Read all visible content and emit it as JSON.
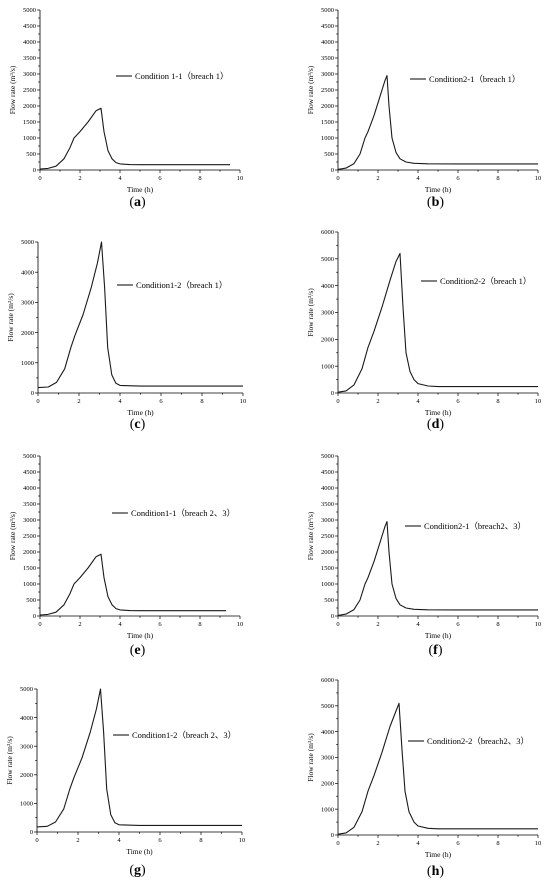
{
  "chart_data": [
    {
      "panel": "a",
      "caption_letter": "a",
      "type": "line",
      "xlabel": "Time (h)",
      "ylabel": "Flow rate (m³/s)",
      "xlim": [
        0,
        10
      ],
      "ylim": [
        0,
        5000
      ],
      "xticks": [
        0,
        2,
        4,
        6,
        8,
        10
      ],
      "yticks": [
        0,
        500,
        1000,
        1500,
        2000,
        2500,
        3000,
        3500,
        4000,
        4500,
        5000
      ],
      "series": [
        {
          "name": "Condition 1-1（breach 1）",
          "x": [
            0,
            0.4,
            0.8,
            1.2,
            1.5,
            1.7,
            2.0,
            2.4,
            2.8,
            3.05,
            3.2,
            3.4,
            3.6,
            3.8,
            4.0,
            4.5,
            5.0,
            6.0,
            7.0,
            8.0,
            9.0,
            9.5
          ],
          "y": [
            30,
            50,
            120,
            350,
            700,
            1000,
            1200,
            1500,
            1850,
            1930,
            1200,
            600,
            350,
            230,
            190,
            170,
            165,
            165,
            165,
            165,
            165,
            165
          ]
        }
      ]
    },
    {
      "panel": "b",
      "caption_letter": "b",
      "type": "line",
      "xlabel": "Time (h)",
      "ylabel": "Flow rate (m³/s)",
      "xlim": [
        0,
        10
      ],
      "ylim": [
        0,
        5000
      ],
      "xticks": [
        0,
        2,
        4,
        6,
        8,
        10
      ],
      "yticks": [
        0,
        500,
        1000,
        1500,
        2000,
        2500,
        3000,
        3500,
        4000,
        4500,
        5000
      ],
      "series": [
        {
          "name": "Condition2-1（breach 1）",
          "x": [
            0,
            0.4,
            0.8,
            1.1,
            1.35,
            1.5,
            1.8,
            2.1,
            2.35,
            2.45,
            2.55,
            2.7,
            2.9,
            3.1,
            3.4,
            3.8,
            4.5,
            6.0,
            8.0,
            10.0
          ],
          "y": [
            20,
            60,
            200,
            500,
            1000,
            1200,
            1700,
            2300,
            2800,
            2950,
            2000,
            1000,
            550,
            350,
            250,
            210,
            195,
            190,
            190,
            190
          ]
        }
      ]
    },
    {
      "panel": "c",
      "caption_letter": "c",
      "type": "line",
      "xlabel": "Time (h)",
      "ylabel": "Flow rate (m³/s)",
      "xlim": [
        0,
        10
      ],
      "ylim": [
        0,
        5000
      ],
      "xticks": [
        0,
        2,
        4,
        6,
        8,
        10
      ],
      "yticks": [
        0,
        1000,
        2000,
        3000,
        4000,
        5000
      ],
      "series": [
        {
          "name": "Condition1-2（breach 1）",
          "x": [
            0,
            0.5,
            0.9,
            1.3,
            1.6,
            1.8,
            2.2,
            2.6,
            2.9,
            3.1,
            3.25,
            3.4,
            3.6,
            3.8,
            4.0,
            5.0,
            6.0,
            8.0,
            10.0
          ],
          "y": [
            180,
            200,
            350,
            800,
            1500,
            1900,
            2600,
            3500,
            4300,
            5000,
            3500,
            1500,
            600,
            320,
            250,
            230,
            230,
            230,
            230
          ]
        }
      ]
    },
    {
      "panel": "d",
      "caption_letter": "d",
      "type": "line",
      "xlabel": "Time (h)",
      "ylabel": "Flow rate (m³/s)",
      "xlim": [
        0,
        10
      ],
      "ylim": [
        0,
        6000
      ],
      "xticks": [
        0,
        2,
        4,
        6,
        8,
        10
      ],
      "yticks": [
        0,
        1000,
        2000,
        3000,
        4000,
        5000,
        6000
      ],
      "series": [
        {
          "name": "Condition2-2（breach 1）",
          "x": [
            0,
            0.4,
            0.8,
            1.2,
            1.5,
            1.8,
            2.2,
            2.6,
            2.9,
            3.1,
            3.25,
            3.4,
            3.6,
            3.8,
            4.0,
            4.5,
            5.0,
            6.0,
            8.0,
            10.0
          ],
          "y": [
            30,
            80,
            300,
            900,
            1700,
            2300,
            3200,
            4200,
            4900,
            5200,
            3200,
            1500,
            800,
            500,
            350,
            260,
            240,
            240,
            240,
            240
          ]
        }
      ]
    },
    {
      "panel": "e",
      "caption_letter": "e",
      "type": "line",
      "xlabel": "Time (h)",
      "ylabel": "Flow rate (m³/s)",
      "xlim": [
        0,
        10
      ],
      "ylim": [
        0,
        5000
      ],
      "xticks": [
        0,
        2,
        4,
        6,
        8,
        10
      ],
      "yticks": [
        0,
        500,
        1000,
        1500,
        2000,
        2500,
        3000,
        3500,
        4000,
        4500,
        5000
      ],
      "series": [
        {
          "name": "Condition1-1（breach 2、3）",
          "x": [
            0,
            0.4,
            0.8,
            1.2,
            1.5,
            1.7,
            2.0,
            2.4,
            2.8,
            3.05,
            3.2,
            3.4,
            3.6,
            3.8,
            4.0,
            4.5,
            5.0,
            6.0,
            7.0,
            8.0,
            9.0,
            9.3
          ],
          "y": [
            30,
            50,
            120,
            350,
            700,
            1000,
            1200,
            1500,
            1850,
            1930,
            1200,
            600,
            350,
            230,
            190,
            170,
            165,
            165,
            165,
            165,
            165,
            165
          ]
        }
      ]
    },
    {
      "panel": "f",
      "caption_letter": "f",
      "type": "line",
      "xlabel": "Time (h)",
      "ylabel": "Flow rate (m³/s)",
      "xlim": [
        0,
        10
      ],
      "ylim": [
        0,
        5000
      ],
      "xticks": [
        0,
        2,
        4,
        6,
        8,
        10
      ],
      "yticks": [
        0,
        500,
        1000,
        1500,
        2000,
        2500,
        3000,
        3500,
        4000,
        4500,
        5000
      ],
      "series": [
        {
          "name": "Condition2-1（breach2、3）",
          "x": [
            0,
            0.4,
            0.8,
            1.1,
            1.35,
            1.5,
            1.8,
            2.1,
            2.35,
            2.45,
            2.55,
            2.7,
            2.9,
            3.1,
            3.4,
            3.8,
            4.5,
            6.0,
            8.0,
            10.0
          ],
          "y": [
            20,
            60,
            200,
            500,
            1000,
            1200,
            1700,
            2300,
            2800,
            2950,
            2000,
            1000,
            550,
            350,
            250,
            210,
            195,
            190,
            190,
            190
          ]
        }
      ]
    },
    {
      "panel": "g",
      "caption_letter": "g",
      "type": "line",
      "xlabel": "Time (h)",
      "ylabel": "Flow rate (m³/s)",
      "xlim": [
        0,
        10
      ],
      "ylim": [
        0,
        5000
      ],
      "xticks": [
        0,
        2,
        4,
        6,
        8,
        10
      ],
      "yticks": [
        0,
        1000,
        2000,
        3000,
        4000,
        5000
      ],
      "series": [
        {
          "name": "Condition1-2（breach 2、3）",
          "x": [
            0,
            0.5,
            0.9,
            1.3,
            1.6,
            1.8,
            2.2,
            2.6,
            2.9,
            3.1,
            3.25,
            3.4,
            3.6,
            3.8,
            4.0,
            5.0,
            6.0,
            8.0,
            10.0
          ],
          "y": [
            180,
            200,
            350,
            800,
            1500,
            1900,
            2600,
            3500,
            4300,
            5000,
            3500,
            1500,
            600,
            320,
            250,
            230,
            230,
            230,
            230
          ]
        }
      ]
    },
    {
      "panel": "h",
      "caption_letter": "h",
      "type": "line",
      "xlabel": "Time (h)",
      "ylabel": "Flow rate (m³/s)",
      "xlim": [
        0,
        10
      ],
      "ylim": [
        0,
        6000
      ],
      "xticks": [
        0,
        2,
        4,
        6,
        8,
        10
      ],
      "yticks": [
        0,
        1000,
        2000,
        3000,
        4000,
        5000,
        6000
      ],
      "series": [
        {
          "name": "Condition2-2（breach2、3）",
          "x": [
            0,
            0.4,
            0.8,
            1.2,
            1.5,
            1.8,
            2.2,
            2.6,
            2.9,
            3.05,
            3.2,
            3.35,
            3.55,
            3.8,
            4.0,
            4.5,
            5.0,
            6.0,
            8.0,
            10.0
          ],
          "y": [
            30,
            80,
            300,
            900,
            1700,
            2300,
            3200,
            4200,
            4800,
            5100,
            3300,
            1700,
            900,
            500,
            350,
            260,
            240,
            240,
            240,
            240
          ]
        }
      ]
    }
  ]
}
